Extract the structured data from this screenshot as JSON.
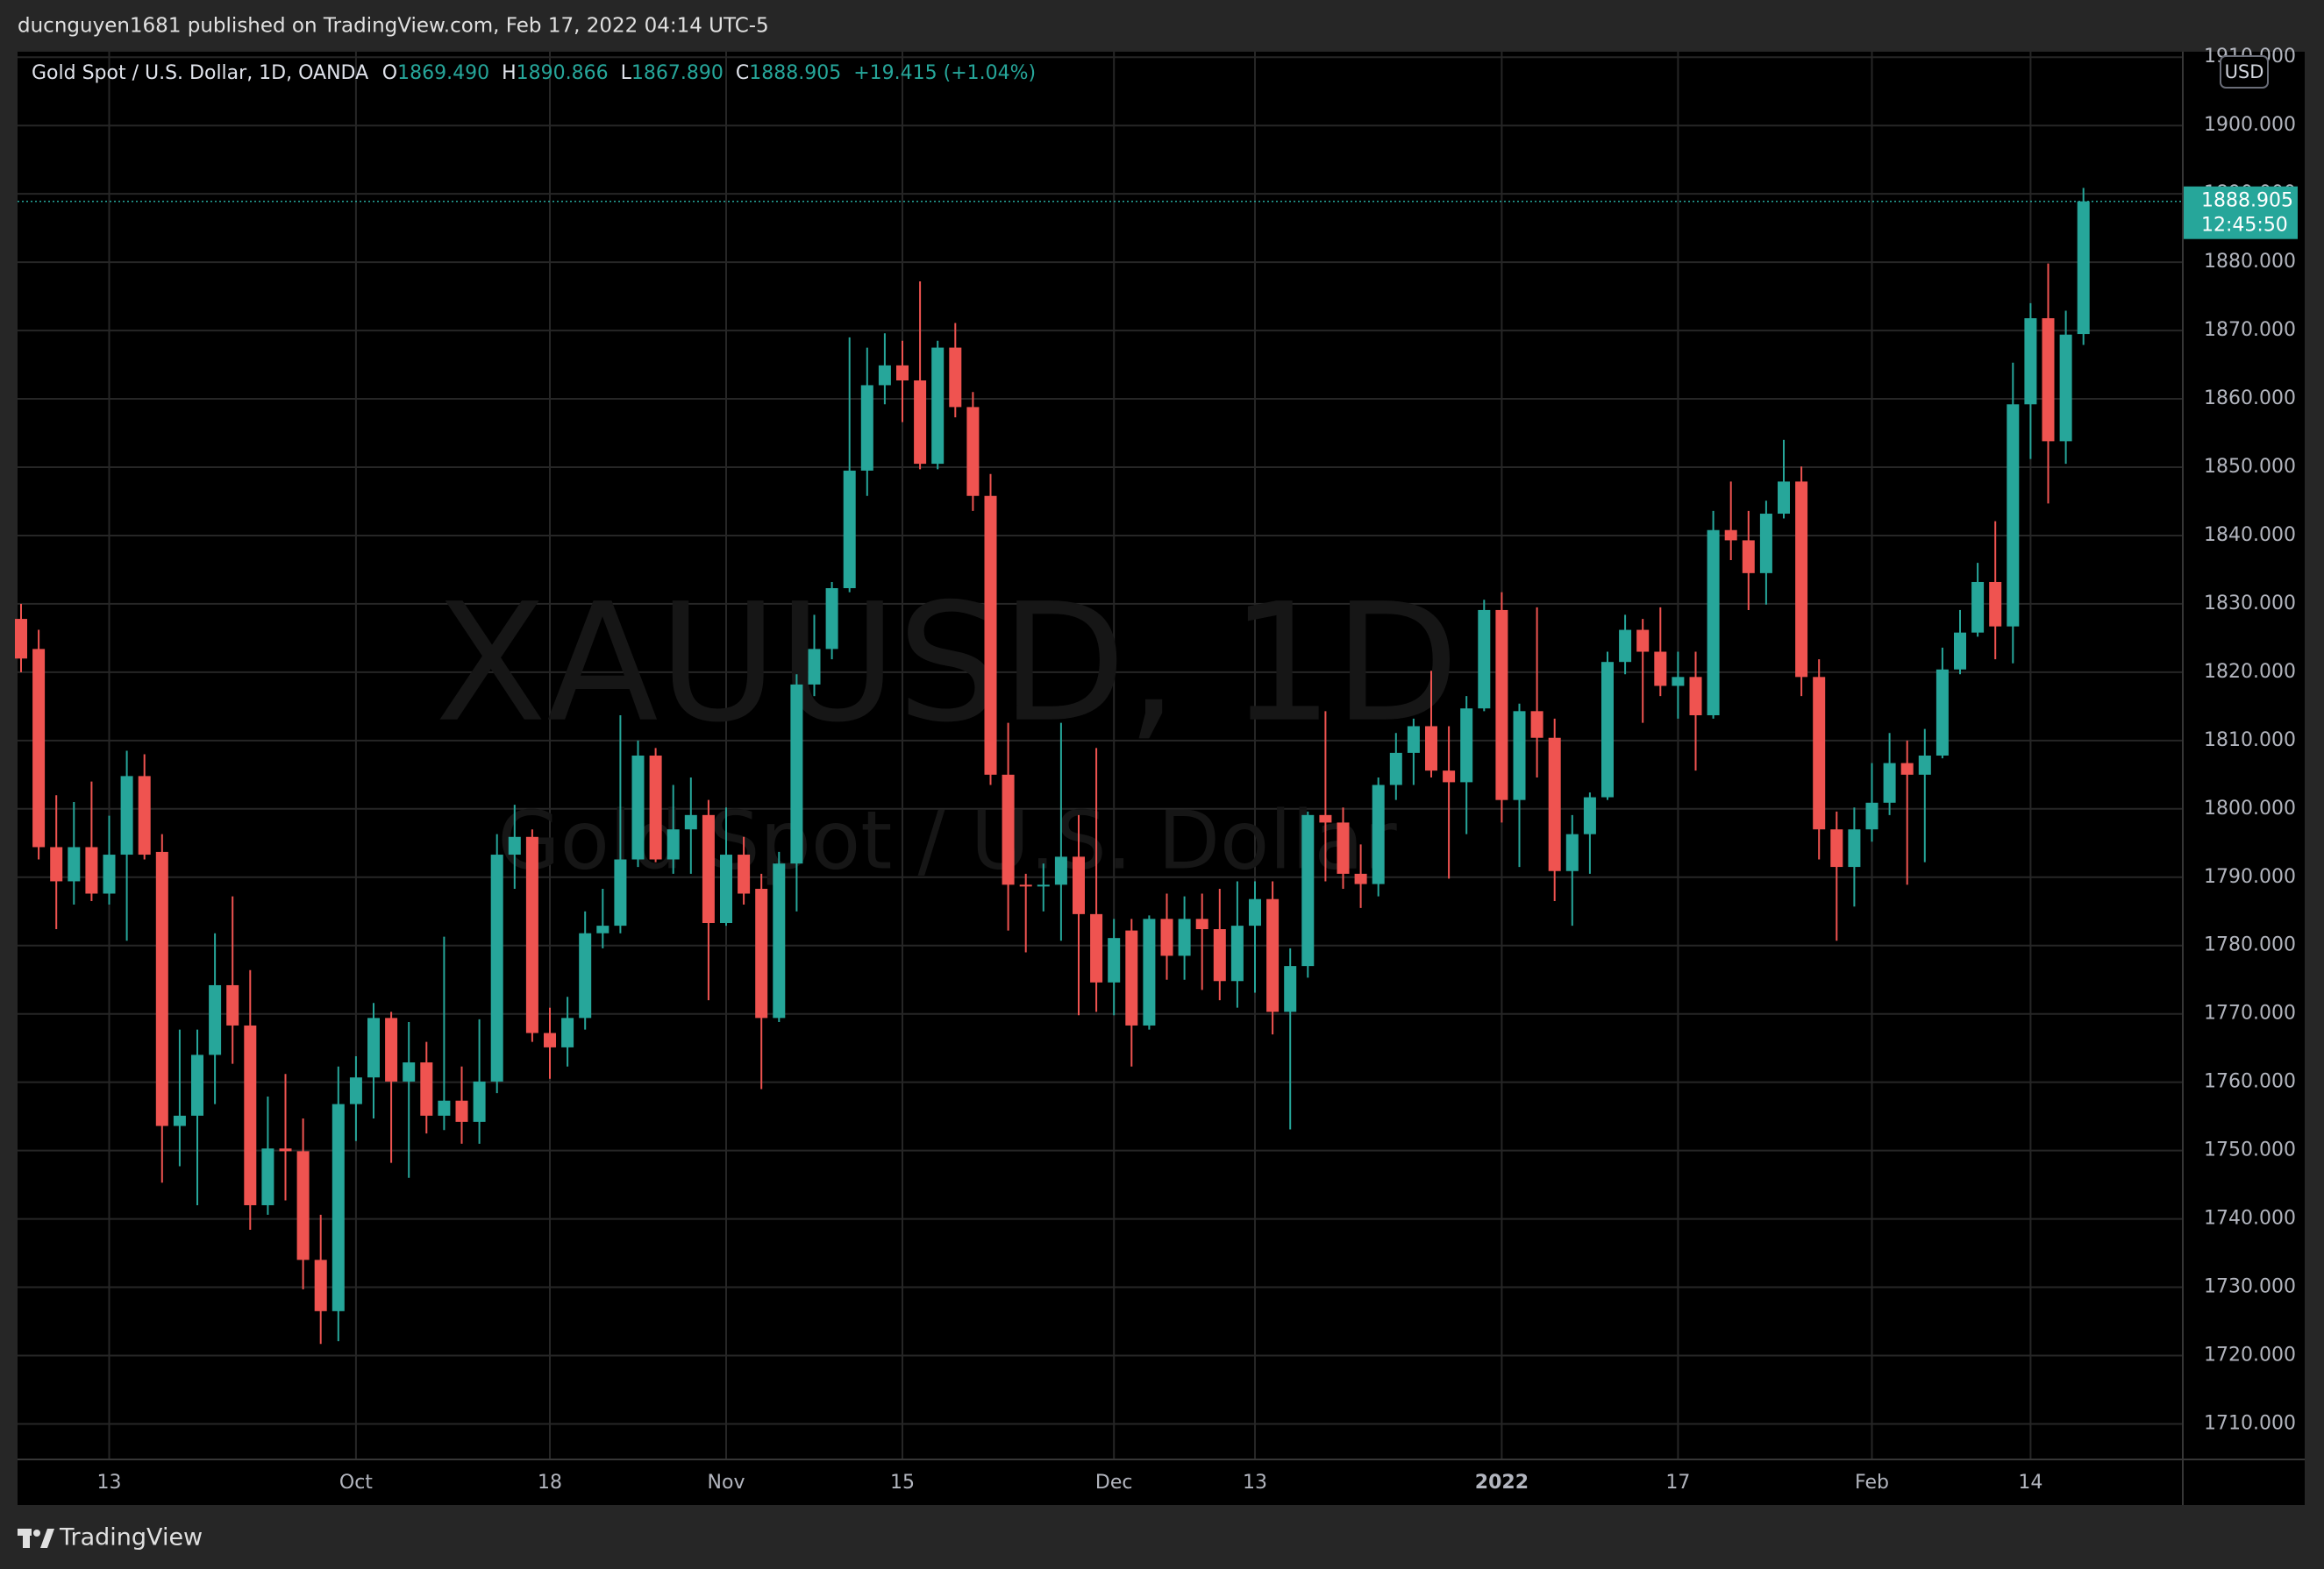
{
  "top_bar": {
    "text": "ducnguyen1681 published on TradingView.com, Feb 17, 2022 04:14 UTC-5"
  },
  "header": {
    "symbol": "Gold Spot / U.S. Dollar, 1D, OANDA",
    "o": "O",
    "open": "1869.490",
    "h": "H",
    "high": "1890.866",
    "l": "L",
    "low": "1867.890",
    "c": "C",
    "close": "1888.905",
    "change": "+19.415 (+1.04%)"
  },
  "watermark": {
    "title": "XAUUSD, 1D",
    "subtitle": "Gold Spot / U.S. Dollar"
  },
  "price_axis": {
    "currency": "USD",
    "last_price": "1888.905",
    "countdown": "12:45:50"
  },
  "footer": {
    "brand": "TradingView"
  },
  "chart_data": {
    "type": "candlestick",
    "up_color": "#26a69a",
    "down_color": "#ef5350",
    "grid": true,
    "ylim": [
      1704.8,
      1910.8
    ],
    "yticks": [
      {
        "value": 1710,
        "label": "1710.000"
      },
      {
        "value": 1720,
        "label": "1720.000"
      },
      {
        "value": 1730,
        "label": "1730.000"
      },
      {
        "value": 1740,
        "label": "1740.000"
      },
      {
        "value": 1750,
        "label": "1750.000"
      },
      {
        "value": 1760,
        "label": "1760.000"
      },
      {
        "value": 1770,
        "label": "1770.000"
      },
      {
        "value": 1780,
        "label": "1780.000"
      },
      {
        "value": 1790,
        "label": "1790.000"
      },
      {
        "value": 1800,
        "label": "1800.000"
      },
      {
        "value": 1810,
        "label": "1810.000"
      },
      {
        "value": 1820,
        "label": "1820.000"
      },
      {
        "value": 1830,
        "label": "1830.000"
      },
      {
        "value": 1840,
        "label": "1840.000"
      },
      {
        "value": 1850,
        "label": "1850.000"
      },
      {
        "value": 1860,
        "label": "1860.000"
      },
      {
        "value": 1870,
        "label": "1870.000"
      },
      {
        "value": 1880,
        "label": "1880.000"
      },
      {
        "value": 1890,
        "label": "1890.000"
      },
      {
        "value": 1900,
        "label": "1900.000"
      },
      {
        "value": 1910,
        "label": "1910.000"
      }
    ],
    "categories": [
      null,
      null,
      null,
      null,
      null,
      "13",
      null,
      null,
      null,
      null,
      null,
      null,
      null,
      null,
      null,
      null,
      null,
      null,
      null,
      "Oct",
      null,
      null,
      null,
      null,
      null,
      null,
      null,
      null,
      null,
      null,
      "18",
      null,
      null,
      null,
      null,
      null,
      null,
      null,
      null,
      null,
      "Nov",
      null,
      null,
      null,
      null,
      null,
      null,
      null,
      null,
      null,
      "15",
      null,
      null,
      null,
      null,
      null,
      null,
      null,
      null,
      null,
      null,
      null,
      "Dec",
      null,
      null,
      null,
      null,
      null,
      null,
      null,
      "13",
      null,
      null,
      null,
      null,
      null,
      null,
      null,
      null,
      null,
      null,
      null,
      null,
      null,
      "2022",
      null,
      null,
      null,
      null,
      null,
      null,
      null,
      null,
      null,
      "17",
      null,
      null,
      null,
      null,
      null,
      null,
      null,
      null,
      null,
      null,
      "Feb",
      null,
      null,
      null,
      null,
      null,
      null,
      null,
      null,
      "14",
      null,
      null,
      null
    ],
    "open": [
      1827.8,
      1823.4,
      1794.4,
      1789.4,
      1794.4,
      1787.6,
      1793.3,
      1804.8,
      1793.7,
      1753.6,
      1755.1,
      1764,
      1774.2,
      1768.3,
      1742,
      1750.3,
      1749.9,
      1734,
      1726.5,
      1756.8,
      1760.7,
      1769.4,
      1760.1,
      1762.9,
      1755.1,
      1757.3,
      1754.2,
      1760.1,
      1793.3,
      1795.9,
      1767.2,
      1765.1,
      1769.4,
      1781.8,
      1782.9,
      1792.6,
      1807.8,
      1792.6,
      1797,
      1799.1,
      1783.3,
      1793.3,
      1788.3,
      1769.4,
      1792,
      1818.2,
      1823.4,
      1832.3,
      1849.5,
      1862,
      1864.9,
      1862.7,
      1850.5,
      1867.5,
      1858.8,
      1845.8,
      1805,
      1788.9,
      1788.7,
      1788.9,
      1793,
      1784.6,
      1774.6,
      1782.2,
      1768.3,
      1783.9,
      1778.5,
      1783.9,
      1782.4,
      1774.8,
      1782.9,
      1786.8,
      1770.3,
      1777,
      1799.1,
      1798,
      1790.5,
      1789,
      1803.5,
      1808.2,
      1812.1,
      1805.6,
      1803.9,
      1814.7,
      1829.1,
      1801.3,
      1814.3,
      1810.4,
      1790.9,
      1796.3,
      1801.7,
      1821.5,
      1826.2,
      1823,
      1818,
      1819.3,
      1813.7,
      1840.8,
      1839.3,
      1834.5,
      1843.2,
      1847.9,
      1819.3,
      1797,
      1791.5,
      1797,
      1800.9,
      1806.7,
      1805,
      1807.8,
      1820.4,
      1825.8,
      1833.2,
      1826.7,
      1859.2,
      1871.8,
      1853.8,
      1869.49
    ],
    "high": [
      1830,
      1826.2,
      1802,
      1801,
      1804,
      1799,
      1808.5,
      1808,
      1796.3,
      1767.7,
      1767.7,
      1781.8,
      1787.2,
      1776.4,
      1757.9,
      1761.2,
      1754.7,
      1740.6,
      1762.3,
      1763.8,
      1771.6,
      1770.3,
      1768.8,
      1765.9,
      1781.3,
      1762.3,
      1769.2,
      1796.3,
      1800.6,
      1797,
      1770.9,
      1772.5,
      1785,
      1788.3,
      1813.7,
      1810,
      1808.9,
      1803.5,
      1804.6,
      1801.3,
      1800.2,
      1795.9,
      1790.5,
      1793.7,
      1819.7,
      1828.4,
      1833.2,
      1869,
      1867.5,
      1869.6,
      1868.5,
      1877.2,
      1868.5,
      1871.1,
      1861,
      1849,
      1812.6,
      1790.5,
      1792,
      1812.6,
      1799.1,
      1808.9,
      1783.9,
      1783.9,
      1784.4,
      1787.6,
      1787.2,
      1787.6,
      1788.3,
      1789.4,
      1789.4,
      1789.4,
      1779.6,
      1799.6,
      1814.3,
      1800.2,
      1794.8,
      1804.6,
      1811.1,
      1813.2,
      1820.2,
      1812.1,
      1816.5,
      1830.6,
      1831.7,
      1815.4,
      1829.5,
      1813.2,
      1799.1,
      1802.4,
      1823,
      1828.4,
      1827.8,
      1829.5,
      1823,
      1823,
      1843.6,
      1847.9,
      1843.6,
      1845.1,
      1854,
      1850.1,
      1821.9,
      1799.6,
      1800.2,
      1806.7,
      1811.1,
      1810,
      1811.7,
      1823.6,
      1829.1,
      1836,
      1842.1,
      1865.3,
      1874,
      1879.8,
      1872.9,
      1890.866
    ],
    "low": [
      1820,
      1792.6,
      1782.4,
      1786,
      1786.5,
      1786,
      1780.7,
      1792.6,
      1745.3,
      1747.7,
      1742,
      1756.8,
      1762.7,
      1738.4,
      1740.6,
      1742.7,
      1729.7,
      1721.7,
      1722.1,
      1751.4,
      1754.7,
      1748.2,
      1746,
      1752.5,
      1753,
      1751,
      1751,
      1758.4,
      1788.3,
      1765.9,
      1760.5,
      1762.3,
      1767.7,
      1779.6,
      1781.8,
      1791.5,
      1792.2,
      1790.5,
      1790.5,
      1772,
      1782.9,
      1786,
      1759,
      1768.8,
      1785,
      1816.5,
      1821.9,
      1831.7,
      1845.8,
      1859.2,
      1856.6,
      1849.7,
      1849.7,
      1857.3,
      1843.6,
      1803.5,
      1782.2,
      1779,
      1785,
      1780.7,
      1769.8,
      1770.3,
      1769.8,
      1762.3,
      1767.7,
      1775,
      1775,
      1773.5,
      1772,
      1770.9,
      1773.1,
      1767,
      1753.1,
      1775.3,
      1789.4,
      1788.3,
      1785.5,
      1787.2,
      1801.3,
      1803.5,
      1804.6,
      1789.8,
      1796.3,
      1814.3,
      1798,
      1791.5,
      1804.6,
      1786.5,
      1782.9,
      1790.5,
      1801.3,
      1819.7,
      1812.6,
      1816.5,
      1813.2,
      1805.6,
      1813.2,
      1836.4,
      1829.1,
      1829.9,
      1842.5,
      1816.5,
      1792.6,
      1780.7,
      1785.7,
      1795.2,
      1799.1,
      1788.9,
      1792.2,
      1807.4,
      1819.7,
      1825.2,
      1821.9,
      1821.3,
      1851.2,
      1844.7,
      1850.5,
      1867.89
    ],
    "close": [
      1822,
      1794.4,
      1789.4,
      1794.4,
      1787.6,
      1793.3,
      1804.8,
      1793.3,
      1753.6,
      1755.1,
      1764,
      1774.2,
      1768.3,
      1742,
      1750.3,
      1749.9,
      1734,
      1726.5,
      1756.8,
      1760.7,
      1769.4,
      1760.1,
      1762.9,
      1755.1,
      1757.3,
      1754.2,
      1760.1,
      1793.3,
      1795.9,
      1767.2,
      1765.1,
      1769.4,
      1781.8,
      1782.9,
      1792.6,
      1807.8,
      1792.6,
      1797,
      1799.1,
      1783.3,
      1793.3,
      1787.6,
      1769.4,
      1792,
      1818.2,
      1823.4,
      1832.3,
      1849.5,
      1862,
      1864.9,
      1862.7,
      1850.5,
      1867.5,
      1858.8,
      1845.8,
      1805,
      1788.9,
      1788.7,
      1788.9,
      1793,
      1784.6,
      1774.6,
      1781.1,
      1768.3,
      1783.9,
      1778.5,
      1783.9,
      1782.4,
      1774.8,
      1782.9,
      1786.8,
      1770.3,
      1777,
      1799.1,
      1798,
      1790.5,
      1789,
      1803.5,
      1808.2,
      1812.1,
      1805.6,
      1803.9,
      1814.7,
      1829.1,
      1801.3,
      1814.3,
      1810.4,
      1790.9,
      1796.3,
      1801.7,
      1821.5,
      1826.2,
      1823,
      1818,
      1819.3,
      1813.7,
      1840.8,
      1839.3,
      1834.5,
      1843.2,
      1847.9,
      1819.3,
      1797,
      1791.5,
      1797,
      1800.9,
      1806.7,
      1805,
      1807.8,
      1820.4,
      1825.8,
      1833.2,
      1826.7,
      1859.2,
      1871.8,
      1853.8,
      1869.4,
      1888.905
    ]
  }
}
